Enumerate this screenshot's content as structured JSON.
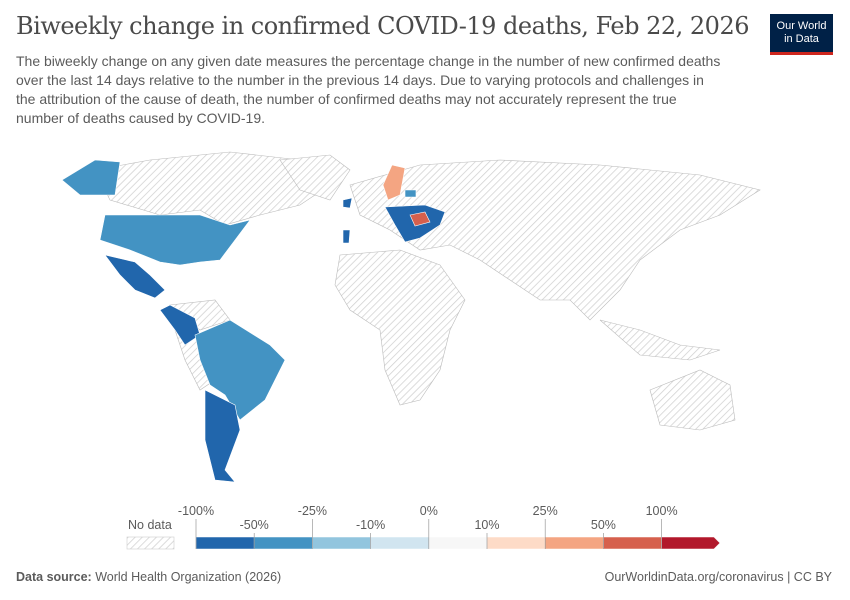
{
  "title": "Biweekly change in confirmed COVID-19 deaths, Feb 22, 2026",
  "subtitle": "The biweekly change on any given date measures the percentage change in the number of new confirmed deaths over the last 14 days relative to the number in the previous 14 days. Due to varying protocols and challenges in the attribution of the cause of death, the number of confirmed deaths may not accurately represent the true number of deaths caused by COVID-19.",
  "logo": {
    "line1": "Our World",
    "line2": "in Data"
  },
  "legend": {
    "no_data": "No data",
    "top_labels": [
      "-100%",
      "-25%",
      "0%",
      "25%",
      "100%"
    ],
    "bottom_labels": [
      "-50%",
      "-10%",
      "10%",
      "50%"
    ],
    "bins": [
      {
        "range": "-100% to -50%",
        "color": "#2166ac"
      },
      {
        "range": "-50% to -25%",
        "color": "#4393c3"
      },
      {
        "range": "-25% to -10%",
        "color": "#92c5de"
      },
      {
        "range": "-10% to 0%",
        "color": "#d1e5f0"
      },
      {
        "range": "0% to 10%",
        "color": "#f7f7f7"
      },
      {
        "range": "10% to 25%",
        "color": "#fddbc7"
      },
      {
        "range": "25% to 50%",
        "color": "#f4a582"
      },
      {
        "range": "50% to 100%",
        "color": "#d6604d"
      },
      {
        "range": ">100%",
        "color": "#b2182b"
      }
    ]
  },
  "countries": [
    {
      "name": "United States",
      "color": "#4393c3"
    },
    {
      "name": "Mexico",
      "color": "#2166ac"
    },
    {
      "name": "Colombia",
      "color": "#2166ac"
    },
    {
      "name": "Brazil",
      "color": "#4393c3"
    },
    {
      "name": "Argentina",
      "color": "#2166ac"
    },
    {
      "name": "Sweden",
      "color": "#f4a582"
    },
    {
      "name": "Ireland",
      "color": "#2166ac"
    },
    {
      "name": "Portugal",
      "color": "#2166ac"
    },
    {
      "name": "Central Europe",
      "color": "#2166ac"
    },
    {
      "name": "Romania",
      "color": "#d6604d"
    },
    {
      "name": "Latvia",
      "color": "#4393c3"
    }
  ],
  "footer": {
    "source_label": "Data source:",
    "source": "World Health Organization (2026)",
    "link": "OurWorldinData.org/coronavirus | CC BY"
  }
}
